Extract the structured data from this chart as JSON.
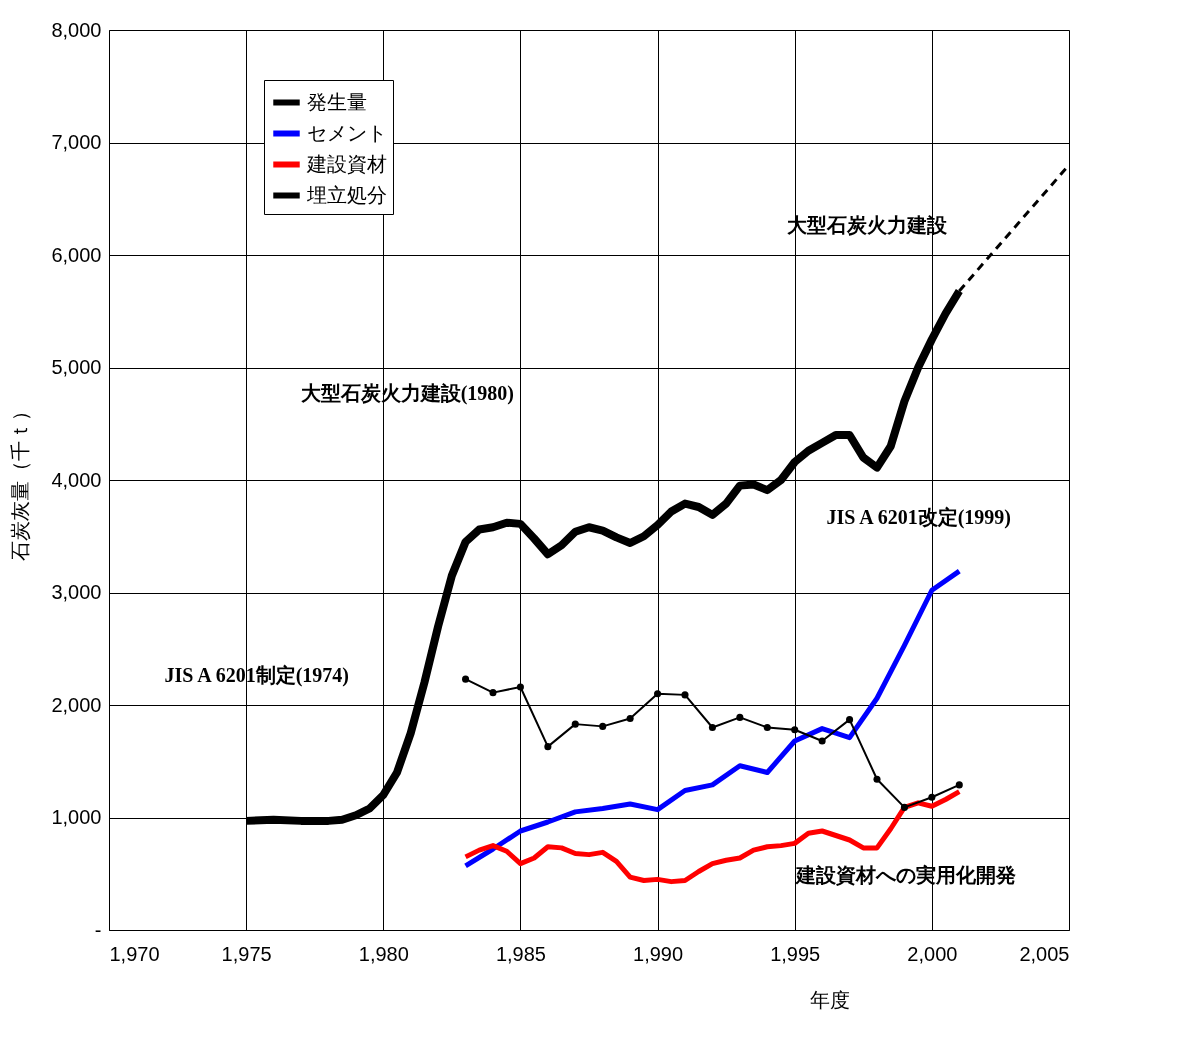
{
  "chart_data": {
    "type": "line",
    "xlabel": "年度",
    "ylabel": "石炭灰量（千ｔ）",
    "xlim": [
      1970,
      2005
    ],
    "xticks": [
      {
        "value": 1970,
        "label": "1,970"
      },
      {
        "value": 1975,
        "label": "1,975"
      },
      {
        "value": 1980,
        "label": "1,980"
      },
      {
        "value": 1985,
        "label": "1,985"
      },
      {
        "value": 1990,
        "label": "1,990"
      },
      {
        "value": 1995,
        "label": "1,995"
      },
      {
        "value": 2000,
        "label": "2,000"
      },
      {
        "value": 2005,
        "label": "2,005"
      }
    ],
    "ylim": [
      0,
      8000
    ],
    "yticks": [
      {
        "value": 0,
        "label": "-"
      },
      {
        "value": 1000,
        "label": "1,000"
      },
      {
        "value": 2000,
        "label": "2,000"
      },
      {
        "value": 3000,
        "label": "3,000"
      },
      {
        "value": 4000,
        "label": "4,000"
      },
      {
        "value": 5000,
        "label": "5,000"
      },
      {
        "value": 6000,
        "label": "6,000"
      },
      {
        "value": 7000,
        "label": "7,000"
      },
      {
        "value": 8000,
        "label": "8,000"
      }
    ],
    "grid": true,
    "legend": "top left",
    "series": [
      {
        "name": "発生量",
        "color": "#000000",
        "marker": "none",
        "line_style": "solid",
        "x": [
          1975,
          1976,
          1977,
          1978,
          1978.5,
          1979,
          1979.5,
          1980,
          1980.5,
          1981,
          1981.5,
          1982,
          1982.5,
          1983,
          1983.5,
          1984,
          1984.5,
          1985,
          1985.5,
          1986,
          1986.5,
          1987,
          1987.5,
          1988,
          1988.5,
          1989,
          1989.5,
          1990,
          1990.5,
          1991,
          1991.5,
          1992,
          1992.5,
          1993,
          1993.5,
          1994,
          1994.5,
          1995,
          1995.5,
          1996,
          1996.5,
          1997,
          1997.5,
          1998,
          1998.5,
          1999,
          1999.5,
          2000,
          2000.5,
          2001
        ],
        "values": [
          970,
          980,
          970,
          970,
          980,
          1020,
          1080,
          1200,
          1400,
          1750,
          2200,
          2700,
          3150,
          3450,
          3560,
          3580,
          3620,
          3610,
          3480,
          3340,
          3420,
          3540,
          3580,
          3550,
          3490,
          3440,
          3500,
          3600,
          3720,
          3790,
          3760,
          3690,
          3790,
          3950,
          3960,
          3910,
          4000,
          4160,
          4260,
          4330,
          4400,
          4400,
          4200,
          4110,
          4300,
          4700,
          5000,
          5250,
          5480,
          5680
        ]
      },
      {
        "color": "#000000",
        "marker": "none",
        "line_style": "dashed",
        "x": [
          2001,
          2005
        ],
        "values": [
          5680,
          6800
        ]
      },
      {
        "name": "セメント",
        "color": "#0000ff",
        "marker": "none",
        "line_style": "solid",
        "x": [
          1983,
          1984,
          1985,
          1986,
          1987,
          1988,
          1989,
          1990,
          1991,
          1992,
          1993,
          1994,
          1995,
          1996,
          1997,
          1998,
          1999,
          2000,
          2001
        ],
        "values": [
          570,
          720,
          880,
          960,
          1050,
          1080,
          1120,
          1070,
          1240,
          1290,
          1460,
          1400,
          1680,
          1790,
          1710,
          2060,
          2530,
          3020,
          3190
        ]
      },
      {
        "name": "建設資材",
        "color": "#ff0000",
        "marker": "none",
        "line_style": "solid",
        "x": [
          1983,
          1983.5,
          1984,
          1984.5,
          1985,
          1985.5,
          1986,
          1986.5,
          1987,
          1987.5,
          1988,
          1988.5,
          1989,
          1989.5,
          1990,
          1990.5,
          1991,
          1991.5,
          1992,
          1992.5,
          1993,
          1993.5,
          1994,
          1994.5,
          1995,
          1995.5,
          1996,
          1996.5,
          1997,
          1997.5,
          1998,
          1998.5,
          1999,
          1999.5,
          2000,
          2000.5,
          2001
        ],
        "values": [
          650,
          710,
          750,
          700,
          590,
          640,
          740,
          730,
          680,
          670,
          690,
          610,
          470,
          440,
          450,
          430,
          440,
          520,
          590,
          620,
          640,
          710,
          740,
          750,
          770,
          860,
          880,
          840,
          800,
          730,
          730,
          900,
          1090,
          1130,
          1100,
          1160,
          1230
        ]
      },
      {
        "name": "埋立処分",
        "color": "#000000",
        "marker": "circle",
        "line_style": "solid",
        "x": [
          1983,
          1984,
          1985,
          1986,
          1987,
          1988,
          1989,
          1990,
          1991,
          1992,
          1993,
          1994,
          1995,
          1996,
          1997,
          1998,
          1999,
          2000,
          2001
        ],
        "values": [
          2230,
          2110,
          2160,
          1630,
          1830,
          1810,
          1880,
          2100,
          2090,
          1800,
          1890,
          1800,
          1780,
          1680,
          1870,
          1340,
          1090,
          1180,
          1290
        ]
      }
    ],
    "annotations": [
      "大型石炭火力建設",
      "大型石炭火力建設(1980)",
      "JIS A 6201改定(1999)",
      "JIS A 6201制定(1974)",
      "建設資材への実用化開発"
    ]
  }
}
